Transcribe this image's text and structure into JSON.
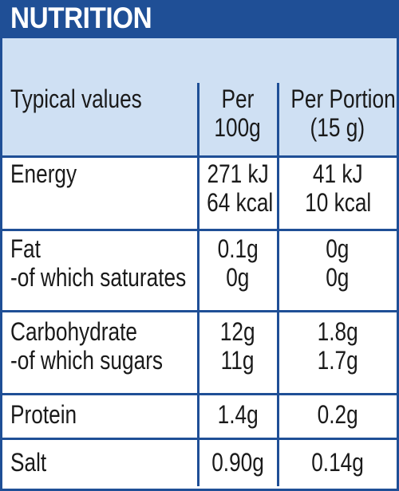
{
  "title": "NUTRITION",
  "header": {
    "col1": "Typical values",
    "col2_line1": "Per",
    "col2_line2": "100g",
    "col3_line1": "Per Portion",
    "col3_line2": "(15 g)"
  },
  "rows": [
    {
      "label1": "Energy",
      "v1a": "271 kJ",
      "v1b": "64 kcal",
      "v2a": "41 kJ",
      "v2b": "10 kcal"
    },
    {
      "label1": "Fat",
      "label2": "-of which saturates",
      "v1a": "0.1g",
      "v1b": "0g",
      "v2a": "0g",
      "v2b": "0g"
    },
    {
      "label1": "Carbohydrate",
      "label2": "-of which sugars",
      "v1a": "12g",
      "v1b": "11g",
      "v2a": "1.8g",
      "v2b": "1.7g"
    },
    {
      "label1": "Protein",
      "v1a": "1.4g",
      "v2a": "0.2g"
    },
    {
      "label1": "Salt",
      "v1a": "0.90g",
      "v2a": "0.14g"
    }
  ],
  "colors": {
    "brand_blue": "#1f4f96",
    "light_blue": "#cfe0f3"
  }
}
